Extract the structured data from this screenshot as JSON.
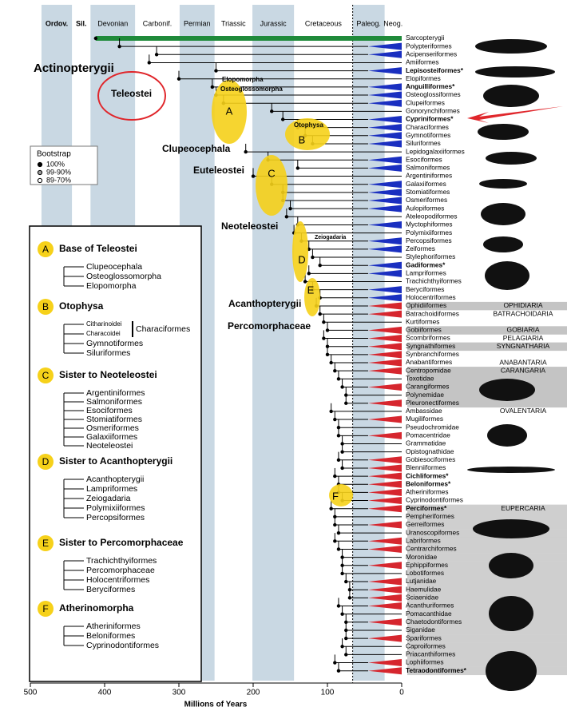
{
  "title_axis": "Millions of Years",
  "time_ticks": [
    500,
    400,
    300,
    200,
    100,
    0
  ],
  "time_lim": [
    500,
    0
  ],
  "kpg_boundary": 66,
  "periods": [
    {
      "name": "Ordov.",
      "start": 485,
      "end": 444,
      "shaded": true
    },
    {
      "name": "Sil.",
      "start": 444,
      "end": 419,
      "shaded": false
    },
    {
      "name": "Devonian",
      "start": 419,
      "end": 359,
      "shaded": true
    },
    {
      "name": "Carbonif.",
      "start": 359,
      "end": 299,
      "shaded": false
    },
    {
      "name": "Permian",
      "start": 299,
      "end": 252,
      "shaded": true
    },
    {
      "name": "Triassic",
      "start": 252,
      "end": 201,
      "shaded": false
    },
    {
      "name": "Jurassic",
      "start": 201,
      "end": 145,
      "shaded": true
    },
    {
      "name": "Cretaceous",
      "start": 145,
      "end": 66,
      "shaded": false
    },
    {
      "name": "Paleog.",
      "start": 66,
      "end": 23,
      "shaded": true
    },
    {
      "name": "Neog.",
      "start": 23,
      "end": 0,
      "shaded": false
    }
  ],
  "taxa": [
    {
      "name": "Sarcopterygii",
      "split": 412,
      "color": "#1f8a3a"
    },
    {
      "name": "Polypteriformes",
      "split": 380,
      "color": "#1a2fc0"
    },
    {
      "name": "Acipenseriformes",
      "split": 330,
      "color": "#1a2fc0"
    },
    {
      "name": "Amiiformes",
      "split": 340,
      "color": null
    },
    {
      "name": "Lepisosteiformes*",
      "split": 250,
      "color": "#1a2fc0",
      "bold": true
    },
    {
      "name": "Elopiformes",
      "split": 300,
      "color": null
    },
    {
      "name": "Anguilliformes*",
      "split": 255,
      "color": "#1a2fc0",
      "bold": true
    },
    {
      "name": "Osteoglossiformes",
      "split": 250,
      "color": "#1a2fc0"
    },
    {
      "name": "Clupeiformes",
      "split": 240,
      "color": "#1a2fc0"
    },
    {
      "name": "Gonorynchiformes",
      "split": 175,
      "color": null
    },
    {
      "name": "Cypriniformes*",
      "split": 160,
      "color": "#1a2fc0",
      "bold": true
    },
    {
      "name": "Characiformes",
      "split": 140,
      "color": "#1a2fc0"
    },
    {
      "name": "Gymnotiformes",
      "split": 130,
      "color": "#1a2fc0"
    },
    {
      "name": "Siluriformes",
      "split": 120,
      "color": "#1a2fc0"
    },
    {
      "name": "Lepidogalaxiiformes",
      "split": 210,
      "color": null
    },
    {
      "name": "Esociformes",
      "split": 180,
      "color": "#1a2fc0"
    },
    {
      "name": "Salmoniformes",
      "split": 140,
      "color": "#1a2fc0"
    },
    {
      "name": "Argentiniformes",
      "split": 200,
      "color": null
    },
    {
      "name": "Galaxiiformes",
      "split": 175,
      "color": "#1a2fc0"
    },
    {
      "name": "Stomiatiformes",
      "split": 160,
      "color": "#1a2fc0"
    },
    {
      "name": "Osmeriformes",
      "split": 160,
      "color": "#1a2fc0"
    },
    {
      "name": "Aulopiformes",
      "split": 150,
      "color": "#1a2fc0"
    },
    {
      "name": "Ateleopodiformes",
      "split": 155,
      "color": null
    },
    {
      "name": "Myctophiformes",
      "split": 140,
      "color": "#1a2fc0"
    },
    {
      "name": "Polymixiiformes",
      "split": 145,
      "color": null
    },
    {
      "name": "Percopsiformes",
      "split": 135,
      "color": "#1a2fc0"
    },
    {
      "name": "Zeiformes",
      "split": 125,
      "color": "#1a2fc0"
    },
    {
      "name": "Stylephoriformes",
      "split": 120,
      "color": null
    },
    {
      "name": "Gadiformes*",
      "split": 110,
      "color": "#1a2fc0",
      "bold": true
    },
    {
      "name": "Lampriformes",
      "split": 125,
      "color": "#1a2fc0"
    },
    {
      "name": "Trachichthyiformes",
      "split": 130,
      "color": null
    },
    {
      "name": "Beryciformes",
      "split": 120,
      "color": "#1a2fc0"
    },
    {
      "name": "Holocentriformes",
      "split": 110,
      "color": "#1a2fc0"
    },
    {
      "name": "Ophidiiformes",
      "split": 115,
      "color": "#d6262e",
      "series": "OPHIDIARIA",
      "band": true
    },
    {
      "name": "Batrachoidiformes",
      "split": 110,
      "color": "#d6262e",
      "series": "BATRACHOIDARIA"
    },
    {
      "name": "Kurtiformes",
      "split": 105,
      "color": null
    },
    {
      "name": "Gobiiformes",
      "split": 100,
      "color": "#d6262e",
      "series": "GOBIARIA",
      "band": true
    },
    {
      "name": "Scombriformes",
      "split": 105,
      "color": "#d6262e",
      "series": "PELAGIARIA"
    },
    {
      "name": "Syngnathiformes",
      "split": 100,
      "color": "#d6262e",
      "series": "SYNGNATHARIA",
      "band": true
    },
    {
      "name": "Synbranchiformes",
      "split": 100,
      "color": "#d6262e"
    },
    {
      "name": "Anabantiformes",
      "split": 95,
      "color": "#d6262e",
      "series": "ANABANTARIA"
    },
    {
      "name": "Centropomidae",
      "split": 90,
      "color": "#d6262e",
      "series": "CARANGARIA",
      "band": true
    },
    {
      "name": "Toxotidae",
      "split": 85,
      "color": null,
      "band": true
    },
    {
      "name": "Carangiformes",
      "split": 80,
      "color": "#d6262e",
      "band": true
    },
    {
      "name": "Polynemidae",
      "split": 75,
      "color": null,
      "band": true
    },
    {
      "name": "Pleuronectiformes",
      "split": 75,
      "color": "#d6262e",
      "band": true
    },
    {
      "name": "Ambassidae",
      "split": 95,
      "color": null,
      "series": "OVALENTARIA"
    },
    {
      "name": "Mugiliformes",
      "split": 90,
      "color": "#d6262e"
    },
    {
      "name": "Pseudochromidae",
      "split": 85,
      "color": null
    },
    {
      "name": "Pomacentridae",
      "split": 85,
      "color": "#d6262e"
    },
    {
      "name": "Grammatidae",
      "split": 80,
      "color": null
    },
    {
      "name": "Opistognathidae",
      "split": 80,
      "color": null
    },
    {
      "name": "Gobiesociformes",
      "split": 85,
      "color": "#d6262e"
    },
    {
      "name": "Blenniiformes",
      "split": 80,
      "color": "#d6262e"
    },
    {
      "name": "Cichliformes*",
      "split": 90,
      "color": "#d6262e",
      "bold": true
    },
    {
      "name": "Beloniformes*",
      "split": 85,
      "color": "#d6262e",
      "bold": true
    },
    {
      "name": "Atheriniformes",
      "split": 85,
      "color": "#d6262e"
    },
    {
      "name": "Cyprinodontiformes",
      "split": 80,
      "color": "#d6262e"
    },
    {
      "name": "Perciformes*",
      "split": 95,
      "color": "#d6262e",
      "bold": true,
      "series": "EUPERCARIA",
      "band": true
    },
    {
      "name": "Pempheriformes",
      "split": 90,
      "color": null,
      "band": true
    },
    {
      "name": "Gerreiformes",
      "split": 90,
      "color": "#d6262e",
      "band": true
    },
    {
      "name": "Uranoscopiformes",
      "split": 85,
      "color": null,
      "band": true
    },
    {
      "name": "Labriformes",
      "split": 90,
      "color": "#d6262e",
      "band": true
    },
    {
      "name": "Centrarchiformes",
      "split": 85,
      "color": "#d6262e",
      "band": true
    },
    {
      "name": "Moronidae",
      "split": 80,
      "color": null,
      "band": true
    },
    {
      "name": "Ephippiformes",
      "split": 80,
      "color": "#d6262e",
      "band": true
    },
    {
      "name": "Lobotiformes",
      "split": 80,
      "color": null,
      "band": true
    },
    {
      "name": "Lutjanidae",
      "split": 75,
      "color": "#d6262e",
      "band": true
    },
    {
      "name": "Haemulidae",
      "split": 70,
      "color": "#d6262e",
      "band": true
    },
    {
      "name": "Sciaenidae",
      "split": 70,
      "color": "#d6262e",
      "band": true
    },
    {
      "name": "Acanthuriformes",
      "split": 85,
      "color": "#d6262e",
      "band": true
    },
    {
      "name": "Pomacanthidae",
      "split": 80,
      "color": null,
      "band": true
    },
    {
      "name": "Chaetodontiformes",
      "split": 75,
      "color": "#d6262e",
      "band": true
    },
    {
      "name": "Siganidae",
      "split": 75,
      "color": null,
      "band": true
    },
    {
      "name": "Spariformes",
      "split": 75,
      "color": "#d6262e",
      "band": true
    },
    {
      "name": "Caproiformes",
      "split": 80,
      "color": null,
      "band": true
    },
    {
      "name": "Priacanthiformes",
      "split": 75,
      "color": null,
      "band": true
    },
    {
      "name": "Lophiiformes",
      "split": 90,
      "color": "#d6262e",
      "band": true
    },
    {
      "name": "Tetraodontiformes*",
      "split": 85,
      "color": "#d6262e",
      "bold": true,
      "band": true
    }
  ],
  "clade_labels": {
    "actinopterygii": "Actinopterygii",
    "teleostei": "Teleostei",
    "clupeocephala": "Clupeocephala",
    "euteleostei": "Euteleostei",
    "neoteleostei": "Neoteleostei",
    "acanthopterygii": "Acanthopterygii",
    "percomorphaceae": "Percomorphaceae",
    "elopomorpha": "Elopomorpha",
    "osteoglossomorpha": "Osteoglossomorpha",
    "otophysa": "Otophysa",
    "zeiogadaria": "Zeiogadaria"
  },
  "node_letters": [
    "A",
    "B",
    "C",
    "D",
    "E",
    "F"
  ],
  "legend": {
    "title": "Bootstrap",
    "items": [
      "100%",
      "99-90%",
      "89-70%"
    ]
  },
  "panels": [
    {
      "letter": "A",
      "title": "Base of Teleostei",
      "taxa": [
        "Clupeocephala",
        "Osteoglossomorpha",
        "Elopomorpha"
      ]
    },
    {
      "letter": "B",
      "title": "Otophysa",
      "taxa": [
        "Citharinoidei",
        "Characoidei",
        "Gymnotiformes",
        "Siluriformes"
      ],
      "bracket": "Characiformes"
    },
    {
      "letter": "C",
      "title": "Sister to Neoteleostei",
      "taxa": [
        "Argentiniformes",
        "Salmoniformes",
        "Esociformes",
        "Stomiatiformes",
        "Osmeriformes",
        "Galaxiiformes",
        "Neoteleostei"
      ]
    },
    {
      "letter": "D",
      "title": "Sister to Acanthopterygii",
      "taxa": [
        "Acanthopterygii",
        "Lampriformes",
        "Zeiogadaria",
        "Polymixiiformes",
        "Percopsiformes"
      ]
    },
    {
      "letter": "E",
      "title": "Sister to Percomorphaceae",
      "taxa": [
        "Trachichthyiformes",
        "Percomorphaceae",
        "Holocentriformes",
        "Beryciformes"
      ]
    },
    {
      "letter": "F",
      "title": "Atherinomorpha",
      "taxa": [
        "Atheriniformes",
        "Beloniformes",
        "Cyprinodontiformes"
      ]
    }
  ]
}
